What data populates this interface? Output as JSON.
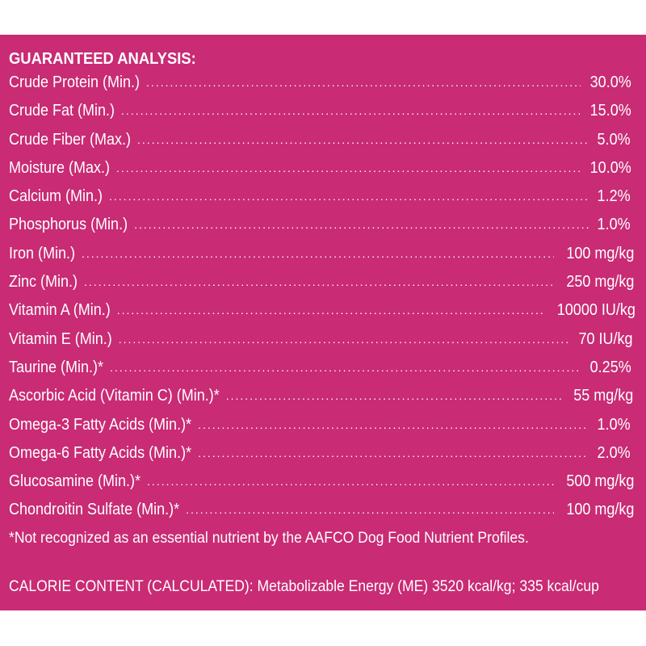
{
  "heading": "GUARANTEED ANALYSIS:",
  "nutrients": [
    {
      "label": "Crude Protein (Min.)",
      "value": "30.0%"
    },
    {
      "label": "Crude Fat (Min.)",
      "value": "15.0%"
    },
    {
      "label": "Crude Fiber (Max.)",
      "value": "5.0%"
    },
    {
      "label": "Moisture (Max.)",
      "value": "10.0%"
    },
    {
      "label": "Calcium (Min.)",
      "value": "1.2%"
    },
    {
      "label": "Phosphorus (Min.)",
      "value": "1.0%"
    },
    {
      "label": "Iron (Min.)",
      "value": "100 mg/kg"
    },
    {
      "label": "Zinc (Min.)",
      "value": "250 mg/kg"
    },
    {
      "label": "Vitamin A (Min.)",
      "value": "10000 IU/kg"
    },
    {
      "label": "Vitamin E (Min.)",
      "value": "70 IU/kg"
    },
    {
      "label": "Taurine (Min.)*",
      "value": "0.25%"
    },
    {
      "label": "Ascorbic Acid (Vitamin C) (Min.)*",
      "value": "55 mg/kg"
    },
    {
      "label": "Omega-3 Fatty Acids (Min.)*",
      "value": "1.0%"
    },
    {
      "label": "Omega-6 Fatty Acids (Min.)*",
      "value": "2.0%"
    },
    {
      "label": "Glucosamine (Min.)*",
      "value": "500 mg/kg"
    },
    {
      "label": "Chondroitin Sulfate (Min.)*",
      "value": "100 mg/kg"
    }
  ],
  "footnote": "*Not recognized as an essential nutrient by the AAFCO Dog Food Nutrient Profiles.",
  "calorie_content": "CALORIE CONTENT (CALCULATED): Metabolizable Energy (ME) 3520 kcal/kg; 335 kcal/cup",
  "colors": {
    "panel_background": "#c92b74",
    "text": "#ffffff",
    "page_background": "#ffffff"
  }
}
